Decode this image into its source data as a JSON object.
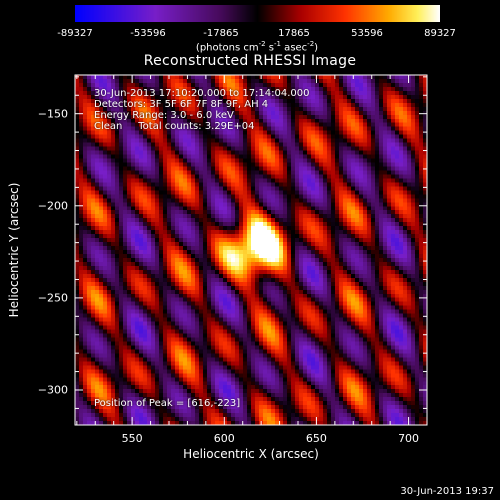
{
  "colorbar": {
    "ticks": [
      "-89327",
      "-53596",
      "-17865",
      "17865",
      "53596",
      "89327"
    ],
    "unit_text": "(photons cm",
    "unit_sup1": "-2",
    "unit_mid": " s",
    "unit_sup2": "-1",
    "unit_mid2": " asec",
    "unit_sup3": "-2",
    "unit_end": ")"
  },
  "chart_data": {
    "type": "heatmap",
    "title": "Reconstructed RHESSI Image",
    "xlabel": "Heliocentric X (arcsec)",
    "ylabel": "Heliocentric Y (arcsec)",
    "xlim": [
      519,
      710
    ],
    "ylim": [
      -319,
      -129
    ],
    "x_ticks": [
      550,
      600,
      650,
      700
    ],
    "y_ticks": [
      -150,
      -200,
      -250,
      -300
    ],
    "x_tick_labels": [
      "550",
      "600",
      "650",
      "700"
    ],
    "y_tick_labels": [
      "−150",
      "−200",
      "−250",
      "−300"
    ],
    "color_range": [
      -89327,
      89327
    ],
    "colormap": "RHESSI (blue-purple-black-red-yellow-white)",
    "peak": {
      "x": 616,
      "y": -223
    },
    "annotations": [
      "30-Jun-2013 17:10:20.000 to 17:14:04.000",
      "Detectors: 3F 5F 6F 7F 8F 9F, AH 4",
      "Energy Range: 3.0 - 6.0 keV",
      "Clean     Total counts: 3.29E+04"
    ],
    "peak_label": "Position of Peak = [616,-223]"
  },
  "footer": {
    "timestamp": "30-Jun-2013 19:37"
  }
}
